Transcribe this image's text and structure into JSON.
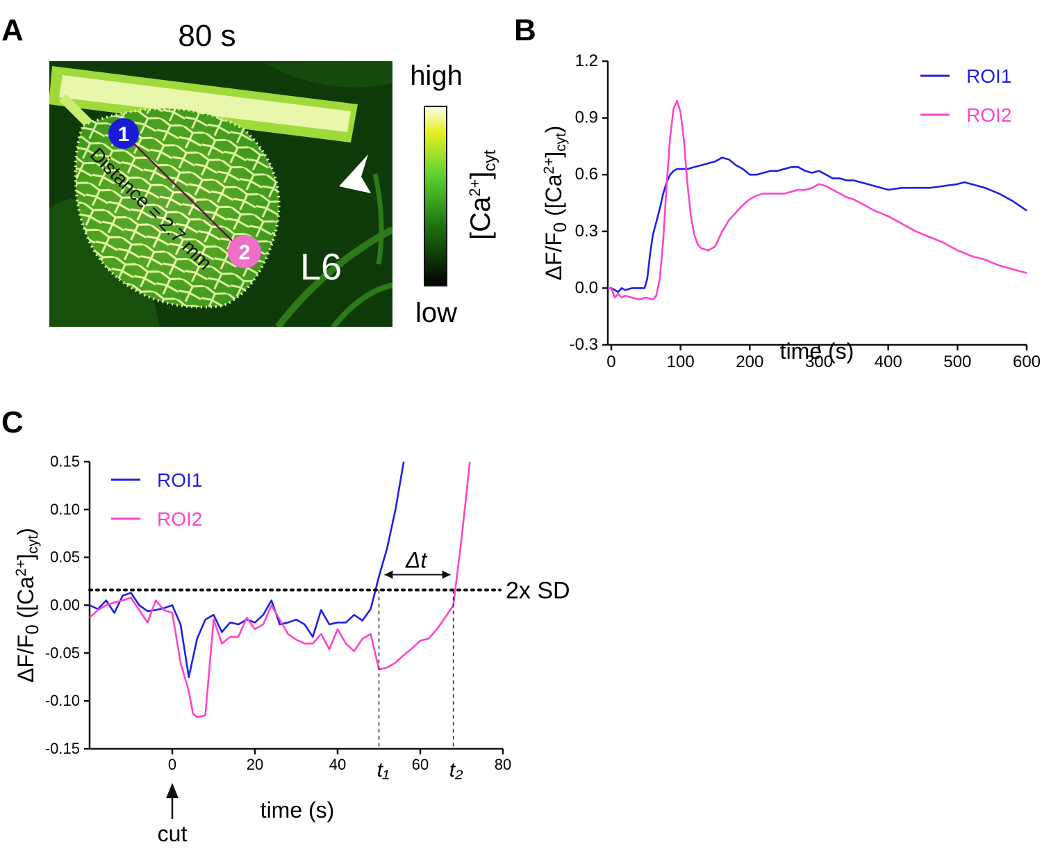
{
  "panels": {
    "a": {
      "letter": "A",
      "time_label": "80 s",
      "colorbar_high": "high",
      "colorbar_low": "low",
      "colorbar_label_main": "[Ca",
      "colorbar_label_sup": "2+",
      "colorbar_label_close": "]",
      "colorbar_label_sub": "cyt",
      "roi1_number": "1",
      "roi2_number": "2",
      "distance_label": "Distance = 2.7 mm",
      "leaf_label": "L6",
      "roi1_color": "#1a1adc",
      "roi2_color": "#ee6fc8"
    },
    "b": {
      "letter": "B"
    },
    "c": {
      "letter": "C",
      "threshold_label": "2x SD",
      "delta_t_label": "Δt",
      "t1_label": "t₁",
      "t2_label": "t₂",
      "cut_label": "cut"
    }
  },
  "ylabel_parts": {
    "pre": "ΔF/F",
    "sub0": "0",
    "mid": " ([Ca",
    "sup": "2+",
    "close": "]",
    "subcyt": "cyt",
    "end": ")"
  },
  "colors": {
    "roi1": "#1f1fe8",
    "roi2": "#ff44cc",
    "axis": "#111111"
  },
  "chart_data": [
    {
      "id": "B",
      "type": "line",
      "xlabel": "time (s)",
      "ylabel": "ΔF/F0 ([Ca2+]cyt)",
      "xlim": [
        -5,
        600
      ],
      "ylim": [
        -0.3,
        1.2
      ],
      "xticks": [
        0,
        100,
        200,
        300,
        400,
        500,
        600
      ],
      "yticks": [
        -0.3,
        0.0,
        0.3,
        0.6,
        0.9,
        1.2
      ],
      "ytick_labels": [
        "-0.3",
        "0.0",
        "0.3",
        "0.6",
        "0.9",
        "1.2"
      ],
      "legend": [
        "ROI1",
        "ROI2"
      ],
      "legend_position": "top-right",
      "series": [
        {
          "name": "ROI1",
          "color": "#1f1fe8",
          "x": [
            -5,
            0,
            5,
            10,
            15,
            20,
            30,
            40,
            48,
            52,
            56,
            60,
            65,
            70,
            75,
            80,
            85,
            90,
            95,
            100,
            110,
            120,
            130,
            140,
            150,
            160,
            170,
            180,
            190,
            200,
            210,
            220,
            230,
            240,
            250,
            260,
            270,
            280,
            290,
            300,
            310,
            320,
            330,
            340,
            350,
            360,
            370,
            380,
            390,
            400,
            420,
            440,
            460,
            480,
            500,
            510,
            520,
            540,
            560,
            580,
            600
          ],
          "y": [
            0.0,
            0.0,
            -0.01,
            -0.02,
            0.0,
            -0.01,
            0.0,
            0.0,
            0.0,
            0.05,
            0.18,
            0.28,
            0.35,
            0.42,
            0.5,
            0.56,
            0.6,
            0.62,
            0.63,
            0.63,
            0.63,
            0.64,
            0.65,
            0.66,
            0.67,
            0.69,
            0.68,
            0.65,
            0.63,
            0.6,
            0.6,
            0.61,
            0.62,
            0.62,
            0.63,
            0.64,
            0.64,
            0.62,
            0.61,
            0.62,
            0.6,
            0.58,
            0.58,
            0.57,
            0.57,
            0.56,
            0.55,
            0.54,
            0.53,
            0.52,
            0.53,
            0.53,
            0.53,
            0.54,
            0.55,
            0.56,
            0.55,
            0.53,
            0.5,
            0.46,
            0.41
          ]
        },
        {
          "name": "ROI2",
          "color": "#ff44cc",
          "x": [
            -5,
            0,
            5,
            10,
            15,
            20,
            30,
            40,
            50,
            60,
            65,
            70,
            75,
            80,
            85,
            90,
            95,
            100,
            105,
            110,
            115,
            120,
            125,
            130,
            140,
            150,
            160,
            170,
            180,
            190,
            200,
            210,
            220,
            230,
            240,
            250,
            260,
            270,
            280,
            290,
            300,
            310,
            320,
            330,
            340,
            350,
            360,
            380,
            400,
            420,
            440,
            460,
            480,
            500,
            520,
            540,
            560,
            580,
            600
          ],
          "y": [
            0.0,
            0.0,
            -0.05,
            -0.03,
            -0.05,
            -0.04,
            -0.05,
            -0.06,
            -0.05,
            -0.06,
            -0.04,
            0.05,
            0.25,
            0.55,
            0.8,
            0.95,
            0.99,
            0.93,
            0.78,
            0.55,
            0.38,
            0.28,
            0.23,
            0.21,
            0.2,
            0.22,
            0.3,
            0.36,
            0.4,
            0.44,
            0.47,
            0.49,
            0.5,
            0.5,
            0.5,
            0.5,
            0.51,
            0.52,
            0.52,
            0.53,
            0.55,
            0.54,
            0.52,
            0.5,
            0.48,
            0.47,
            0.45,
            0.41,
            0.38,
            0.34,
            0.3,
            0.27,
            0.24,
            0.2,
            0.17,
            0.15,
            0.12,
            0.1,
            0.08
          ]
        }
      ]
    },
    {
      "id": "C",
      "type": "line",
      "xlabel": "time (s)",
      "ylabel": "ΔF/F0 ([Ca2+]cyt)",
      "xlim": [
        -20,
        80
      ],
      "ylim": [
        -0.15,
        0.15
      ],
      "xticks": [
        0,
        20,
        40,
        60,
        80
      ],
      "yticks": [
        -0.15,
        -0.1,
        -0.05,
        0.0,
        0.05,
        0.1,
        0.15
      ],
      "ytick_labels": [
        "-0.15",
        "-0.10",
        "-0.05",
        "0.00",
        "0.05",
        "0.10",
        "0.15"
      ],
      "legend": [
        "ROI1",
        "ROI2"
      ],
      "legend_position": "top-left",
      "threshold": 0.016,
      "t1": 50,
      "t2": 68,
      "cut_time": 0,
      "series": [
        {
          "name": "ROI1",
          "color": "#1f1fe8",
          "x": [
            -20,
            -18,
            -16,
            -14,
            -12,
            -10,
            -8,
            -6,
            -4,
            -2,
            0,
            2,
            4,
            6,
            8,
            10,
            12,
            14,
            16,
            18,
            20,
            22,
            24,
            26,
            28,
            30,
            32,
            34,
            36,
            38,
            40,
            42,
            44,
            46,
            48,
            50,
            52,
            54,
            56
          ],
          "y": [
            0.0,
            -0.004,
            0.005,
            -0.008,
            0.01,
            0.013,
            0.0,
            -0.006,
            -0.005,
            -0.003,
            0.0,
            -0.02,
            -0.075,
            -0.035,
            -0.015,
            -0.01,
            -0.028,
            -0.018,
            -0.02,
            -0.015,
            -0.018,
            -0.01,
            0.005,
            -0.02,
            -0.018,
            -0.015,
            -0.02,
            -0.033,
            -0.005,
            -0.02,
            -0.018,
            -0.018,
            -0.01,
            -0.016,
            -0.004,
            0.03,
            0.06,
            0.1,
            0.15
          ]
        },
        {
          "name": "ROI2",
          "color": "#ff44cc",
          "x": [
            -20,
            -18,
            -16,
            -14,
            -12,
            -10,
            -8,
            -6,
            -4,
            -2,
            0,
            2,
            4,
            5,
            6,
            8,
            10,
            12,
            14,
            16,
            18,
            20,
            22,
            24,
            26,
            28,
            30,
            32,
            34,
            36,
            38,
            40,
            42,
            44,
            46,
            48,
            50,
            52,
            54,
            56,
            58,
            60,
            62,
            64,
            66,
            68,
            70,
            72
          ],
          "y": [
            -0.013,
            -0.005,
            0.0,
            0.003,
            0.005,
            0.008,
            -0.005,
            -0.018,
            0.005,
            -0.005,
            -0.008,
            -0.06,
            -0.09,
            -0.113,
            -0.117,
            -0.115,
            -0.015,
            -0.04,
            -0.033,
            -0.033,
            -0.013,
            -0.025,
            -0.02,
            0.0,
            -0.015,
            -0.03,
            -0.036,
            -0.04,
            -0.04,
            -0.03,
            -0.046,
            -0.025,
            -0.04,
            -0.048,
            -0.035,
            -0.03,
            -0.067,
            -0.065,
            -0.06,
            -0.052,
            -0.045,
            -0.037,
            -0.035,
            -0.025,
            -0.013,
            0.0,
            0.07,
            0.15
          ]
        }
      ]
    }
  ]
}
